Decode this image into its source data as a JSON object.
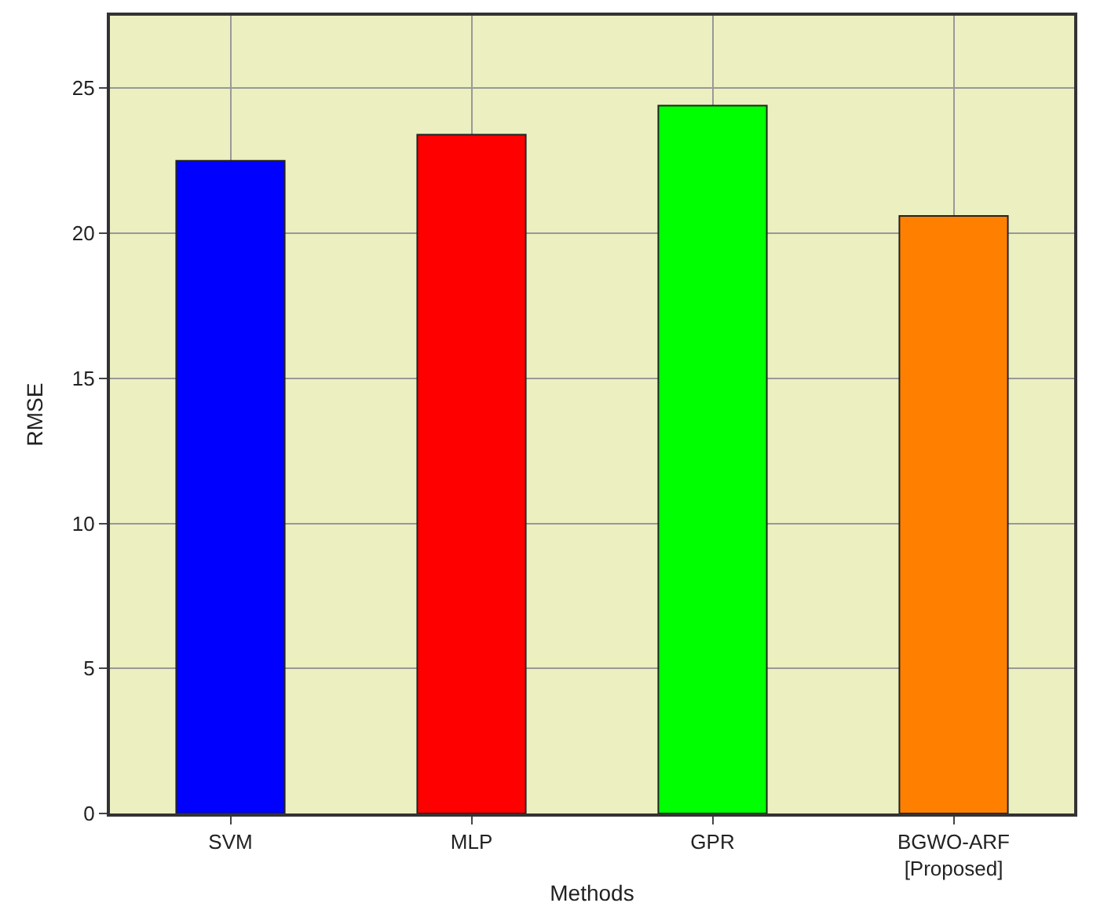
{
  "chart_data": {
    "type": "bar",
    "xlabel": "Methods",
    "ylabel": "RMSE",
    "categories": [
      "SVM",
      "MLP",
      "GPR",
      "BGWO-ARF\n[Proposed]"
    ],
    "values": [
      22.5,
      23.4,
      24.4,
      20.6
    ],
    "colors": [
      "#0000ff",
      "#ff0000",
      "#00ff00",
      "#ff8000"
    ],
    "ylim": [
      0,
      27.5
    ],
    "yticks": [
      0,
      5,
      10,
      15,
      20,
      25
    ],
    "grid": true
  }
}
